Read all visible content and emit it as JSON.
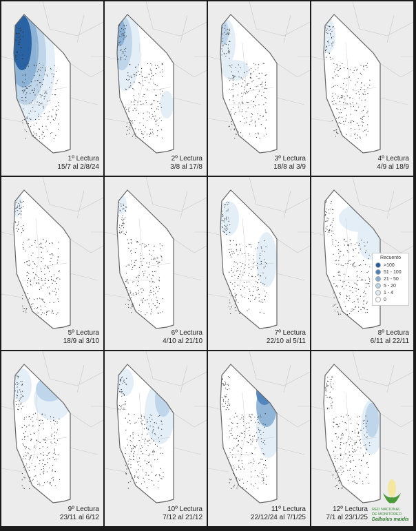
{
  "panels": [
    {
      "title": "1º Lectura",
      "dates": "15/7 al 2/8/24"
    },
    {
      "title": "2º Lectura",
      "dates": "3/8 al 17/8"
    },
    {
      "title": "3º Lectura",
      "dates": "18/8 al 3/9"
    },
    {
      "title": "4º Lectura",
      "dates": "4/9 al 18/9"
    },
    {
      "title": "5º Lectura",
      "dates": "18/9 al 3/10"
    },
    {
      "title": "6º Lectura",
      "dates": "4/10 al 21/10"
    },
    {
      "title": "7º Lectura",
      "dates": "22/10 al 5/11"
    },
    {
      "title": "8º Lectura",
      "dates": "6/11 al 22/11"
    },
    {
      "title": "9º Lectura",
      "dates": "23/11 al 6/12"
    },
    {
      "title": "10º Lectura",
      "dates": "7/12 al 21/12"
    },
    {
      "title": "11º Lectura",
      "dates": "22/12/24 al 7/1/25"
    },
    {
      "title": "12º Lectura",
      "dates": "7/1 al 23/1/25"
    }
  ],
  "legend": {
    "title": "Recuento",
    "items": [
      {
        "label": ">100",
        "color": "#1f5a9e"
      },
      {
        "label": "51 - 100",
        "color": "#4a7fb8"
      },
      {
        "label": "21 - 50",
        "color": "#86aed3"
      },
      {
        "label": "5 - 20",
        "color": "#b9d2e8"
      },
      {
        "label": "1 - 4",
        "color": "#e0ecf6"
      },
      {
        "label": "0",
        "color": "#ffffff"
      }
    ]
  },
  "logo": {
    "line1": "RED NACIONAL",
    "line2": "DE MONITOREO",
    "species": "Dalbulus maidis"
  }
}
